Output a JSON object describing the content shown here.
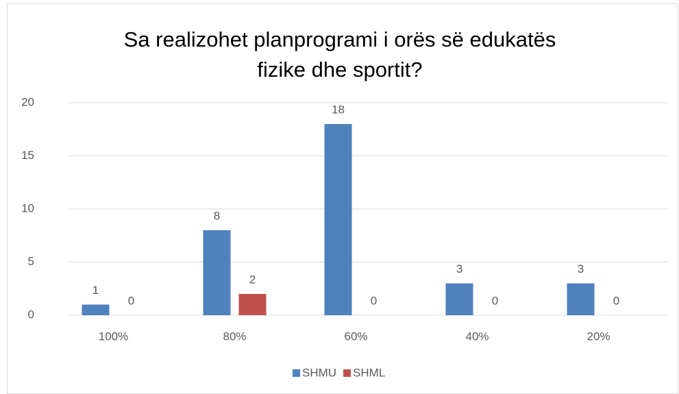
{
  "chart_data": {
    "type": "bar",
    "title": "Sa realizohet planprogrami i orës së edukatës fizike dhe sportit?",
    "categories": [
      "100%",
      "80%",
      "60%",
      "40%",
      "20%"
    ],
    "series": [
      {
        "name": "SHMU",
        "color": "#4f81bd",
        "values": [
          1,
          8,
          18,
          3,
          3
        ]
      },
      {
        "name": "SHML",
        "color": "#c0504d",
        "values": [
          0,
          2,
          0,
          0,
          0
        ]
      }
    ],
    "ylim": [
      0,
      20
    ],
    "yticks": [
      0,
      5,
      10,
      15,
      20
    ],
    "grid": true,
    "legend": "bottom"
  }
}
